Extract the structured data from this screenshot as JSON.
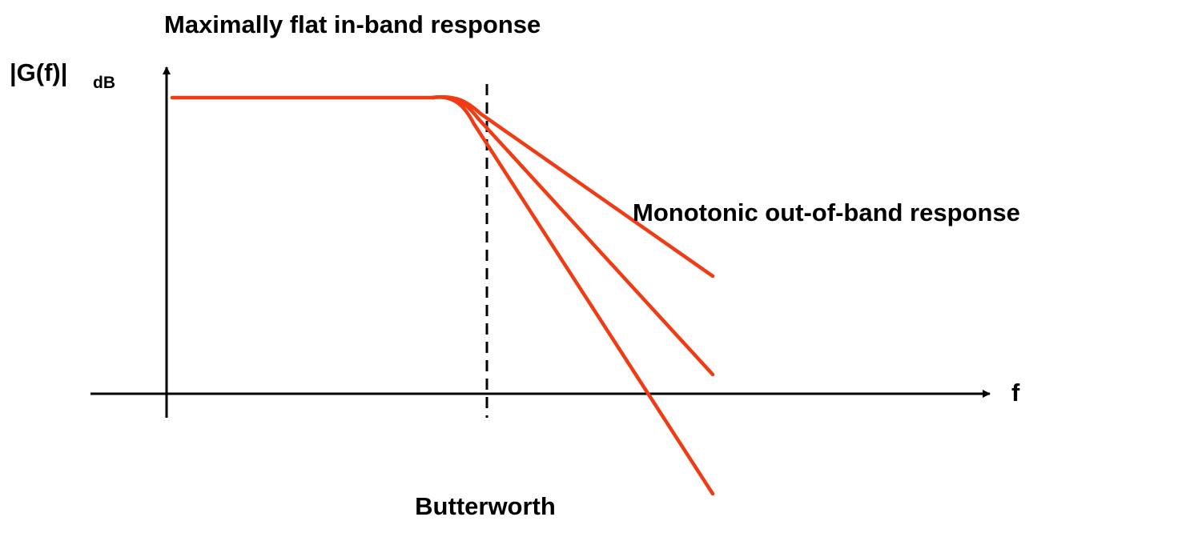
{
  "title": "Maximally flat in-band response",
  "y_axis_label": {
    "text": "|G(f)|",
    "subscript": "dB"
  },
  "x_axis_label": "f",
  "annotations": {
    "out_of_band": "Monotonic out-of-band response",
    "filter_name": "Butterworth"
  }
}
